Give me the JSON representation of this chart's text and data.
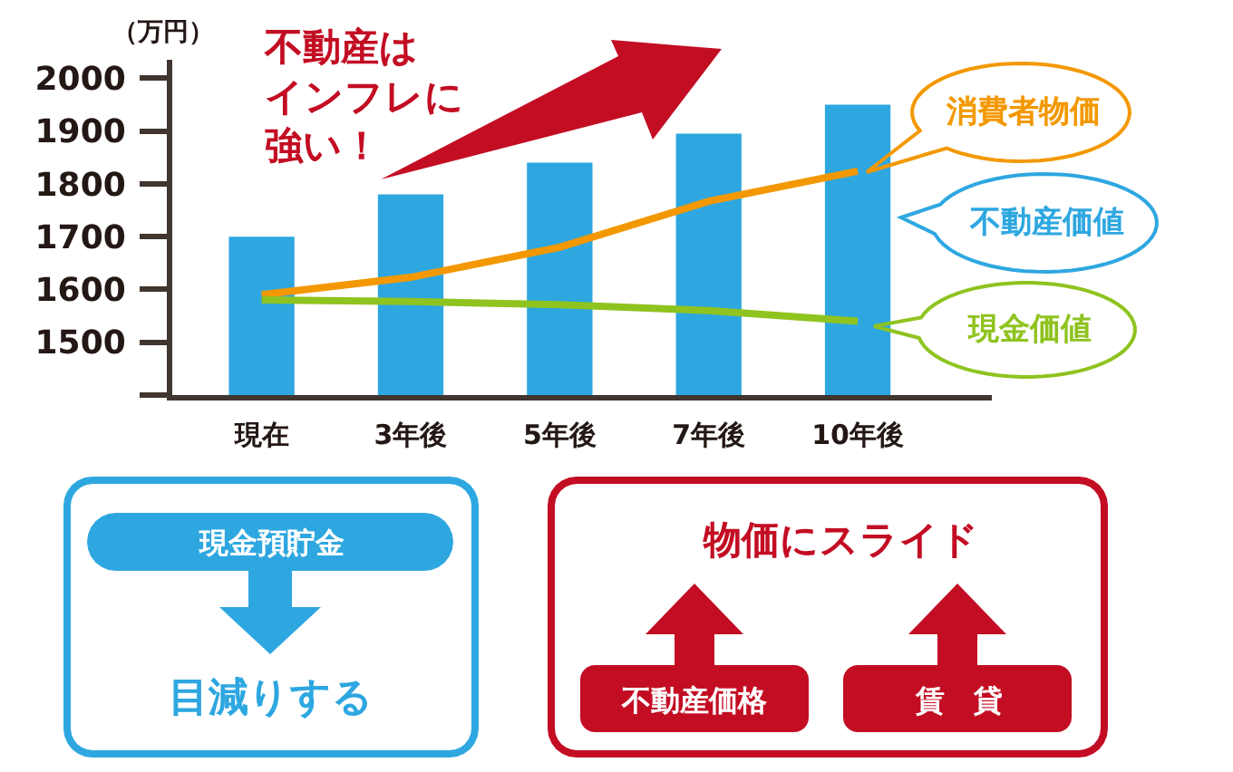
{
  "chart_data": {
    "type": "bar",
    "ylabel": "（万円）",
    "categories": [
      "現在",
      "3年後",
      "5年後",
      "7年後",
      "10年後"
    ],
    "series": [
      {
        "name": "不動産価値",
        "color": "#2ea7e0",
        "values": [
          1700,
          1780,
          1840,
          1895,
          1950
        ]
      },
      {
        "name": "消費者物価",
        "type": "line",
        "color": "#f39800",
        "values": [
          1590,
          1623,
          1680,
          1767,
          1824
        ]
      },
      {
        "name": "現金価値",
        "type": "line",
        "color": "#8fc31f",
        "values": [
          1580,
          1577,
          1571,
          1560,
          1540
        ]
      }
    ],
    "ylim": [
      1400,
      2035
    ],
    "yticks": [
      {
        "value": 1400,
        "label": null
      },
      1500,
      1600,
      1700,
      1800,
      1900,
      2000
    ],
    "annotations": [
      "不動産はインフレに強い！",
      "現金預貯金",
      "目減りする",
      "物価にスライド",
      "不動産価格",
      "賃　貸"
    ]
  }
}
